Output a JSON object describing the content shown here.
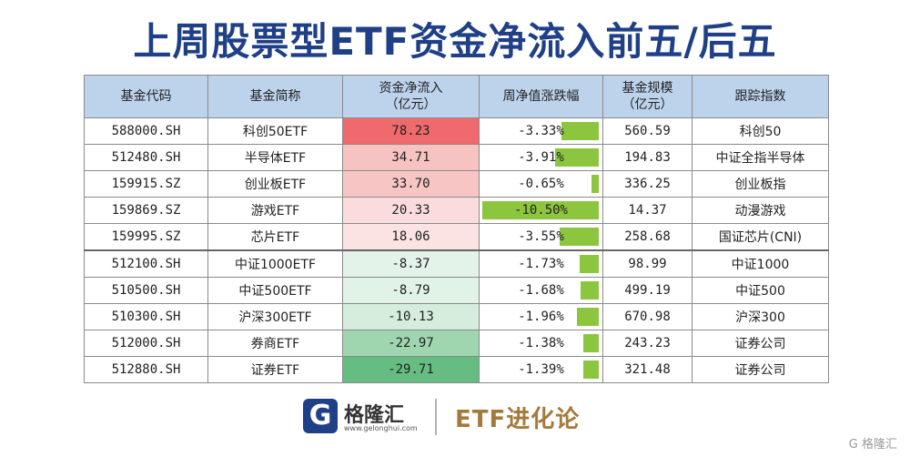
{
  "title": "上周股票型ETF资金净流入前五/后五",
  "headers": {
    "code": "基金代码",
    "name": "基金简称",
    "flow_line1": "资金净流入",
    "flow_line2": "（亿元）",
    "chg": "周净值涨跌幅",
    "size_line1": "基金规模",
    "size_line2": "（亿元）",
    "index": "跟踪指数"
  },
  "rows": [
    {
      "code": "588000.SH",
      "name": "科创50ETF",
      "flow": "78.23",
      "chg": "-3.33%",
      "chg_value": -3.33,
      "size": "560.59",
      "index": "科创50",
      "flow_color": "#f0696c"
    },
    {
      "code": "512480.SH",
      "name": "半导体ETF",
      "flow": "34.71",
      "chg": "-3.91%",
      "chg_value": -3.91,
      "size": "194.83",
      "index": "中证全指半导体",
      "flow_color": "#f7c2c2"
    },
    {
      "code": "159915.SZ",
      "name": "创业板ETF",
      "flow": "33.70",
      "chg": "-0.65%",
      "chg_value": -0.65,
      "size": "336.25",
      "index": "创业板指",
      "flow_color": "#f8c5c5"
    },
    {
      "code": "159869.SZ",
      "name": "游戏ETF",
      "flow": "20.33",
      "chg": "-10.50%",
      "chg_value": -10.5,
      "size": "14.37",
      "index": "动漫游戏",
      "flow_color": "#fbdcdc"
    },
    {
      "code": "159995.SZ",
      "name": "芯片ETF",
      "flow": "18.06",
      "chg": "-3.55%",
      "chg_value": -3.55,
      "size": "258.68",
      "index": "国证芯片(CNI)",
      "flow_color": "#fce3e3"
    },
    {
      "code": "512100.SH",
      "name": "中证1000ETF",
      "flow": "-8.37",
      "chg": "-1.73%",
      "chg_value": -1.73,
      "size": "98.99",
      "index": "中证1000",
      "flow_color": "#e4f3e9"
    },
    {
      "code": "510500.SH",
      "name": "中证500ETF",
      "flow": "-8.79",
      "chg": "-1.68%",
      "chg_value": -1.68,
      "size": "499.19",
      "index": "中证500",
      "flow_color": "#e1f2e6"
    },
    {
      "code": "510300.SH",
      "name": "沪深300ETF",
      "flow": "-10.13",
      "chg": "-1.96%",
      "chg_value": -1.96,
      "size": "670.98",
      "index": "沪深300",
      "flow_color": "#d6eddd"
    },
    {
      "code": "512000.SH",
      "name": "券商ETF",
      "flow": "-22.97",
      "chg": "-1.38%",
      "chg_value": -1.38,
      "size": "243.23",
      "index": "证券公司",
      "flow_color": "#9fd6b0"
    },
    {
      "code": "512880.SH",
      "name": "证券ETF",
      "flow": "-29.71",
      "chg": "-1.39%",
      "chg_value": -1.39,
      "size": "321.48",
      "index": "证券公司",
      "flow_color": "#66bd82"
    }
  ],
  "colors": {
    "title": "#1f3f86",
    "header_bg": "#bdd3ec",
    "bar": "#8cc63f",
    "brand": "#a37a3b"
  },
  "footer": {
    "logo_glyph": "G",
    "logo_name": "格隆汇",
    "logo_url": "www.gelonghui.com",
    "brand": "ETF进化论"
  },
  "watermark": "G 格隆汇"
}
